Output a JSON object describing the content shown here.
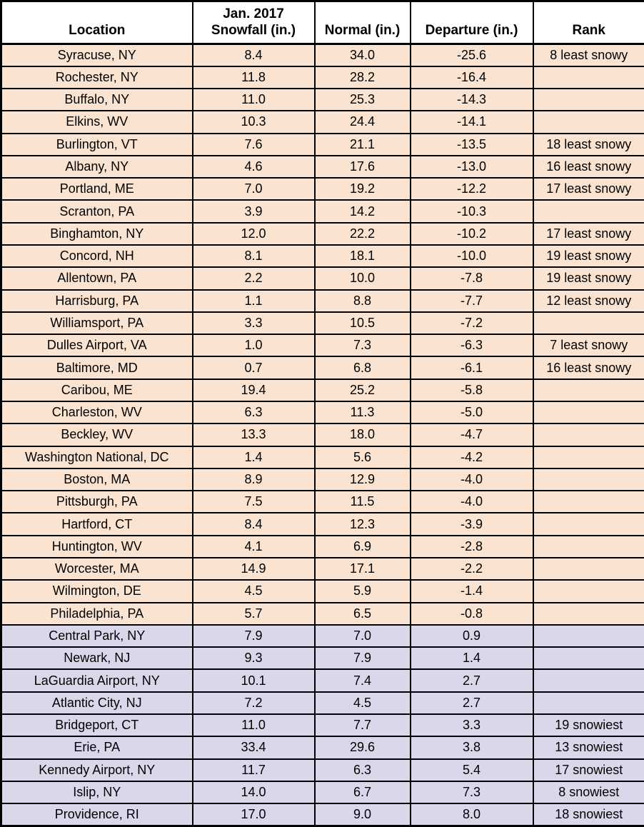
{
  "colors": {
    "below_normal_row_bg": "#FAE4D1",
    "above_normal_row_bg": "#DAD7EA",
    "header_bg": "#FFFFFF",
    "border": "#000000",
    "text": "#000000"
  },
  "header": {
    "location": "Location",
    "snowfall_line1": "Jan. 2017",
    "snowfall_line2": "Snowfall (in.)",
    "normal": "Normal (in.)",
    "departure": "Departure (in.)",
    "rank": "Rank"
  },
  "chart_data": {
    "type": "table",
    "columns": [
      "Location",
      "Jan. 2017 Snowfall (in.)",
      "Normal (in.)",
      "Departure (in.)",
      "Rank"
    ],
    "rows": [
      {
        "location": "Syracuse, NY",
        "snowfall": 8.4,
        "normal": 34.0,
        "departure": -25.6,
        "rank": "8 least snowy"
      },
      {
        "location": "Rochester, NY",
        "snowfall": 11.8,
        "normal": 28.2,
        "departure": -16.4,
        "rank": ""
      },
      {
        "location": "Buffalo, NY",
        "snowfall": 11.0,
        "normal": 25.3,
        "departure": -14.3,
        "rank": ""
      },
      {
        "location": "Elkins, WV",
        "snowfall": 10.3,
        "normal": 24.4,
        "departure": -14.1,
        "rank": ""
      },
      {
        "location": "Burlington, VT",
        "snowfall": 7.6,
        "normal": 21.1,
        "departure": -13.5,
        "rank": "18 least snowy"
      },
      {
        "location": "Albany, NY",
        "snowfall": 4.6,
        "normal": 17.6,
        "departure": -13.0,
        "rank": "16 least snowy"
      },
      {
        "location": "Portland, ME",
        "snowfall": 7.0,
        "normal": 19.2,
        "departure": -12.2,
        "rank": "17 least snowy"
      },
      {
        "location": "Scranton, PA",
        "snowfall": 3.9,
        "normal": 14.2,
        "departure": -10.3,
        "rank": ""
      },
      {
        "location": "Binghamton, NY",
        "snowfall": 12.0,
        "normal": 22.2,
        "departure": -10.2,
        "rank": "17 least snowy"
      },
      {
        "location": "Concord, NH",
        "snowfall": 8.1,
        "normal": 18.1,
        "departure": -10.0,
        "rank": "19 least snowy"
      },
      {
        "location": "Allentown, PA",
        "snowfall": 2.2,
        "normal": 10.0,
        "departure": -7.8,
        "rank": "19 least snowy"
      },
      {
        "location": "Harrisburg, PA",
        "snowfall": 1.1,
        "normal": 8.8,
        "departure": -7.7,
        "rank": "12 least snowy"
      },
      {
        "location": "Williamsport, PA",
        "snowfall": 3.3,
        "normal": 10.5,
        "departure": -7.2,
        "rank": ""
      },
      {
        "location": "Dulles Airport, VA",
        "snowfall": 1.0,
        "normal": 7.3,
        "departure": -6.3,
        "rank": "7 least snowy"
      },
      {
        "location": "Baltimore, MD",
        "snowfall": 0.7,
        "normal": 6.8,
        "departure": -6.1,
        "rank": "16 least snowy"
      },
      {
        "location": "Caribou, ME",
        "snowfall": 19.4,
        "normal": 25.2,
        "departure": -5.8,
        "rank": ""
      },
      {
        "location": "Charleston, WV",
        "snowfall": 6.3,
        "normal": 11.3,
        "departure": -5.0,
        "rank": ""
      },
      {
        "location": "Beckley, WV",
        "snowfall": 13.3,
        "normal": 18.0,
        "departure": -4.7,
        "rank": ""
      },
      {
        "location": "Washington National, DC",
        "snowfall": 1.4,
        "normal": 5.6,
        "departure": -4.2,
        "rank": ""
      },
      {
        "location": "Boston, MA",
        "snowfall": 8.9,
        "normal": 12.9,
        "departure": -4.0,
        "rank": ""
      },
      {
        "location": "Pittsburgh, PA",
        "snowfall": 7.5,
        "normal": 11.5,
        "departure": -4.0,
        "rank": ""
      },
      {
        "location": "Hartford, CT",
        "snowfall": 8.4,
        "normal": 12.3,
        "departure": -3.9,
        "rank": ""
      },
      {
        "location": "Huntington, WV",
        "snowfall": 4.1,
        "normal": 6.9,
        "departure": -2.8,
        "rank": ""
      },
      {
        "location": "Worcester, MA",
        "snowfall": 14.9,
        "normal": 17.1,
        "departure": -2.2,
        "rank": ""
      },
      {
        "location": "Wilmington, DE",
        "snowfall": 4.5,
        "normal": 5.9,
        "departure": -1.4,
        "rank": ""
      },
      {
        "location": "Philadelphia, PA",
        "snowfall": 5.7,
        "normal": 6.5,
        "departure": -0.8,
        "rank": ""
      },
      {
        "location": "Central Park, NY",
        "snowfall": 7.9,
        "normal": 7.0,
        "departure": 0.9,
        "rank": ""
      },
      {
        "location": "Newark, NJ",
        "snowfall": 9.3,
        "normal": 7.9,
        "departure": 1.4,
        "rank": ""
      },
      {
        "location": "LaGuardia Airport, NY",
        "snowfall": 10.1,
        "normal": 7.4,
        "departure": 2.7,
        "rank": ""
      },
      {
        "location": "Atlantic City, NJ",
        "snowfall": 7.2,
        "normal": 4.5,
        "departure": 2.7,
        "rank": ""
      },
      {
        "location": "Bridgeport, CT",
        "snowfall": 11.0,
        "normal": 7.7,
        "departure": 3.3,
        "rank": "19 snowiest"
      },
      {
        "location": "Erie, PA",
        "snowfall": 33.4,
        "normal": 29.6,
        "departure": 3.8,
        "rank": "13 snowiest"
      },
      {
        "location": "Kennedy Airport, NY",
        "snowfall": 11.7,
        "normal": 6.3,
        "departure": 5.4,
        "rank": "17 snowiest"
      },
      {
        "location": "Islip, NY",
        "snowfall": 14.0,
        "normal": 6.7,
        "departure": 7.3,
        "rank": "8 snowiest"
      },
      {
        "location": "Providence, RI",
        "snowfall": 17.0,
        "normal": 9.0,
        "departure": 8.0,
        "rank": "18 snowiest"
      }
    ]
  }
}
